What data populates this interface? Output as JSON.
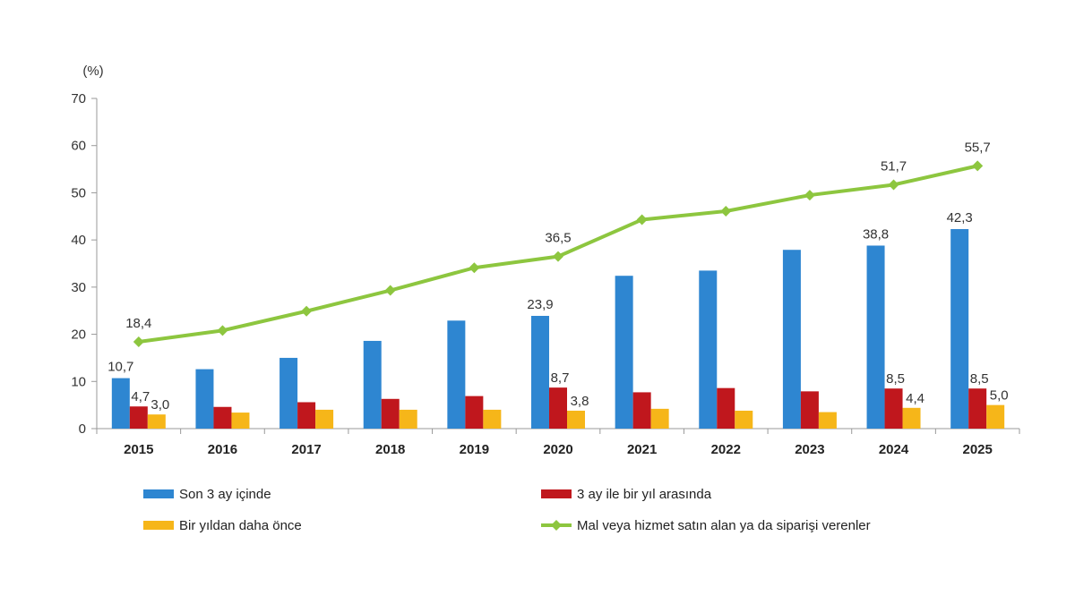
{
  "chart_data": {
    "type": "bar",
    "ylabel": "(%)",
    "ylim": [
      0,
      70
    ],
    "yticks": [
      0,
      10,
      20,
      30,
      40,
      50,
      60,
      70
    ],
    "grid": false,
    "legend_position": "bottom",
    "categories": [
      "2015",
      "2016",
      "2017",
      "2018",
      "2019",
      "2020",
      "2021",
      "2022",
      "2023",
      "2024",
      "2025"
    ],
    "series": [
      {
        "name": "Son 3 ay içinde",
        "kind": "bar",
        "color": "#2E86D1",
        "values": [
          10.7,
          12.6,
          15.0,
          18.6,
          22.9,
          23.9,
          32.4,
          33.5,
          37.9,
          38.8,
          42.3
        ],
        "labels": [
          "10,7",
          "",
          "",
          "",
          "",
          "23,9",
          "",
          "",
          "",
          "38,8",
          "42,3"
        ]
      },
      {
        "name": "3 ay ile bir yıl arasında",
        "kind": "bar",
        "color": "#C0171D",
        "values": [
          4.7,
          4.6,
          5.6,
          6.3,
          6.9,
          8.7,
          7.7,
          8.6,
          7.9,
          8.5,
          8.5
        ],
        "labels": [
          "4,7",
          "",
          "",
          "",
          "",
          "8,7",
          "",
          "",
          "",
          "8,5",
          "8,5"
        ]
      },
      {
        "name": "Bir yıldan daha önce",
        "kind": "bar",
        "color": "#F6B619",
        "values": [
          3.0,
          3.4,
          4.0,
          4.0,
          4.0,
          3.8,
          4.2,
          3.8,
          3.5,
          4.4,
          5.0
        ],
        "labels": [
          "3,0",
          "",
          "",
          "",
          "",
          "3,8",
          "",
          "",
          "",
          "4,4",
          "5,0"
        ]
      },
      {
        "name": "Mal veya hizmet satın alan ya da siparişi verenler",
        "kind": "line",
        "color": "#8DC63F",
        "values": [
          18.4,
          20.8,
          24.9,
          29.3,
          34.1,
          36.5,
          44.3,
          46.1,
          49.5,
          51.7,
          55.7
        ],
        "labels": [
          "18,4",
          "",
          "",
          "",
          "",
          "36,5",
          "",
          "",
          "",
          "51,7",
          "55,7"
        ]
      }
    ]
  }
}
